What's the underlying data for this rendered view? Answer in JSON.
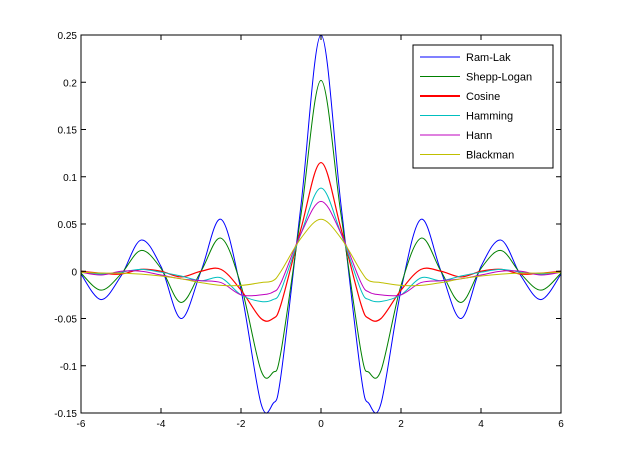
{
  "chart_data": {
    "type": "line",
    "title": "",
    "xlabel": "",
    "ylabel": "",
    "xlim": [
      -6,
      6
    ],
    "ylim": [
      -0.15,
      0.25
    ],
    "x_ticks": [
      "-6",
      "-4",
      "-2",
      "0",
      "2",
      "4",
      "6"
    ],
    "y_ticks": [
      "-0.15",
      "-0.1",
      "-0.05",
      "0",
      "0.05",
      "0.1",
      "0.15",
      "0.2",
      "0.25"
    ],
    "grid": false,
    "legend_position": "top-right",
    "x": [
      -6,
      -5.5,
      -5,
      -4.5,
      -4,
      -3.5,
      -3,
      -2.5,
      -2,
      -1.5,
      -1.2,
      -1,
      -0.5,
      0,
      0.5,
      1,
      1.2,
      1.5,
      2,
      2.5,
      3,
      3.5,
      4,
      4.5,
      5,
      5.5,
      6
    ],
    "series": [
      {
        "name": "Ram-Lak",
        "color": "#0000ff",
        "values": [
          -0.003,
          -0.03,
          -0.005,
          0.033,
          0.005,
          -0.05,
          0.0,
          0.055,
          -0.02,
          -0.14,
          -0.14,
          -0.11,
          0.07,
          0.25,
          0.07,
          -0.11,
          -0.14,
          -0.14,
          -0.02,
          0.055,
          0.0,
          -0.05,
          0.005,
          0.033,
          -0.005,
          -0.03,
          -0.003
        ]
      },
      {
        "name": "Shepp-Logan",
        "color": "#008000",
        "values": [
          -0.002,
          -0.02,
          -0.003,
          0.022,
          0.003,
          -0.033,
          0.0,
          0.035,
          -0.015,
          -0.105,
          -0.107,
          -0.085,
          0.06,
          0.202,
          0.06,
          -0.085,
          -0.107,
          -0.105,
          -0.015,
          0.035,
          0.0,
          -0.033,
          0.003,
          0.022,
          -0.003,
          -0.02,
          -0.002
        ]
      },
      {
        "name": "Cosine",
        "color": "#ff0000",
        "values": [
          0.0,
          -0.002,
          -0.003,
          0.002,
          0.0,
          -0.006,
          0.0,
          0.002,
          -0.02,
          -0.05,
          -0.05,
          -0.035,
          0.045,
          0.115,
          0.045,
          -0.035,
          -0.05,
          -0.05,
          -0.02,
          0.002,
          0.0,
          -0.006,
          0.0,
          0.002,
          -0.003,
          -0.002,
          0.0
        ]
      },
      {
        "name": "Hamming",
        "color": "#00bfbf",
        "values": [
          -0.001,
          -0.003,
          -0.001,
          0.002,
          -0.001,
          -0.005,
          -0.01,
          -0.007,
          -0.025,
          -0.032,
          -0.03,
          -0.02,
          0.04,
          0.088,
          0.04,
          -0.02,
          -0.03,
          -0.032,
          -0.025,
          -0.007,
          -0.01,
          -0.005,
          -0.001,
          0.002,
          -0.001,
          -0.003,
          -0.001
        ]
      },
      {
        "name": "Hann",
        "color": "#bf00bf",
        "values": [
          -0.001,
          -0.004,
          0.0,
          0.0,
          -0.004,
          -0.008,
          -0.01,
          -0.012,
          -0.025,
          -0.025,
          -0.022,
          -0.012,
          0.04,
          0.074,
          0.04,
          -0.012,
          -0.022,
          -0.025,
          -0.025,
          -0.012,
          -0.01,
          -0.008,
          -0.004,
          0.0,
          0.0,
          -0.004,
          -0.001
        ]
      },
      {
        "name": "Blackman",
        "color": "#bfbf00",
        "values": [
          -0.001,
          -0.002,
          -0.002,
          -0.003,
          -0.005,
          -0.008,
          -0.012,
          -0.015,
          -0.015,
          -0.012,
          -0.01,
          0.0,
          0.035,
          0.055,
          0.035,
          0.0,
          -0.01,
          -0.012,
          -0.015,
          -0.015,
          -0.012,
          -0.008,
          -0.005,
          -0.003,
          -0.002,
          -0.002,
          -0.001
        ]
      }
    ]
  }
}
